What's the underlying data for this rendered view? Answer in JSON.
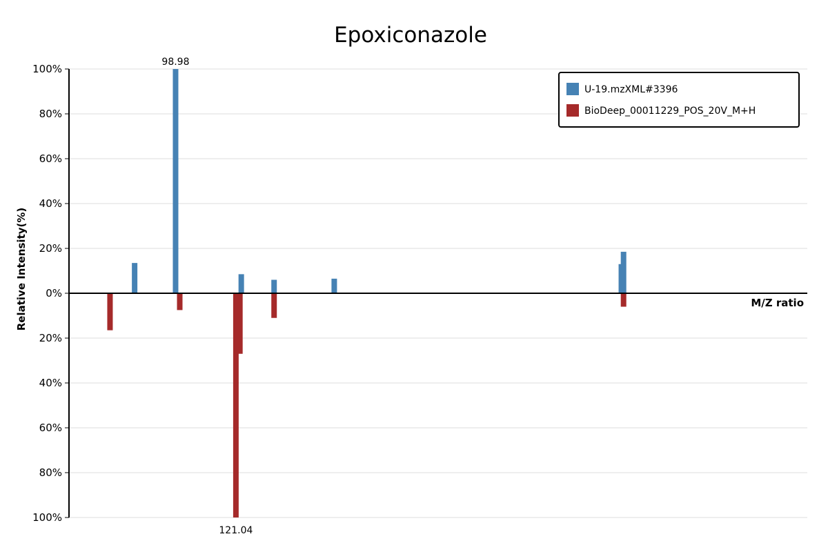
{
  "chart_data": {
    "type": "bar",
    "title": "Epoxiconazole",
    "xlabel": "M/Z ratio",
    "ylabel": "Relative Intensity(%)",
    "ylim": [
      -100,
      100
    ],
    "xlim": [
      60,
      330
    ],
    "y_ticks": [
      "100%",
      "80%",
      "60%",
      "40%",
      "20%",
      "0%",
      "20%",
      "40%",
      "60%",
      "80%",
      "100%"
    ],
    "grid": true,
    "legend_position": "top-right",
    "series": [
      {
        "name": "U-19.mzXML#3396",
        "color": "#4682b4",
        "direction": "up",
        "points": [
          {
            "mz": 84.0,
            "intensity": 13.5
          },
          {
            "mz": 98.98,
            "intensity": 100
          },
          {
            "mz": 123.0,
            "intensity": 8.5
          },
          {
            "mz": 135.0,
            "intensity": 6.0
          },
          {
            "mz": 157.0,
            "intensity": 6.5
          },
          {
            "mz": 262.0,
            "intensity": 13.0
          },
          {
            "mz": 262.8,
            "intensity": 18.5
          }
        ]
      },
      {
        "name": "BioDeep_00011229_POS_20V_M+H",
        "color": "#a52a2a",
        "direction": "down",
        "points": [
          {
            "mz": 75.0,
            "intensity": 16.5
          },
          {
            "mz": 100.5,
            "intensity": 7.5
          },
          {
            "mz": 121.04,
            "intensity": 100
          },
          {
            "mz": 122.5,
            "intensity": 27.0
          },
          {
            "mz": 135.0,
            "intensity": 11.0
          },
          {
            "mz": 262.8,
            "intensity": 6.0
          }
        ]
      }
    ],
    "peak_labels": [
      {
        "text": "98.98",
        "series": 0,
        "point": 1
      },
      {
        "text": "121.04",
        "series": 1,
        "point": 2
      }
    ]
  }
}
